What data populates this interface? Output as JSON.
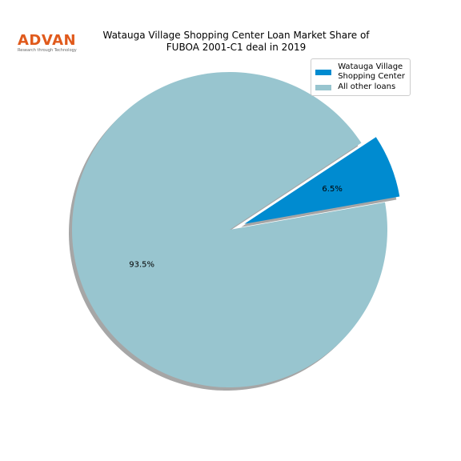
{
  "logo": {
    "name": "ADVAN",
    "tagline": "Research through Technology"
  },
  "chart_data": {
    "type": "pie",
    "title": "Watauga Village Shopping Center Loan Market Share of\nFUBOA 2001-C1 deal in 2019",
    "categories": [
      "Watauga Village\nShopping Center",
      "All other loans"
    ],
    "values": [
      6.5,
      93.5
    ],
    "value_labels": [
      "6.5%",
      "93.5%"
    ],
    "colors": [
      "#008bd0",
      "#98c5cf"
    ],
    "explode": [
      0.1,
      0
    ],
    "start_angle": 10,
    "shadow": true,
    "legend": "upper right"
  }
}
